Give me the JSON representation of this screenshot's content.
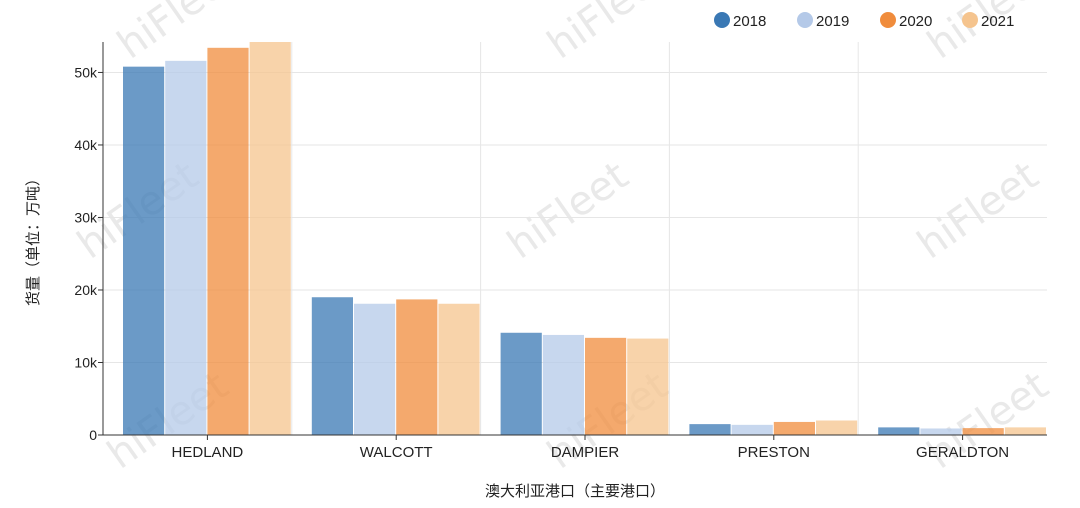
{
  "chart_data": {
    "type": "bar",
    "categories": [
      "HEDLAND",
      "WALCOTT",
      "DAMPIER",
      "PRESTON",
      "GERALDTON"
    ],
    "series": [
      {
        "name": "2018",
        "color": "#3a78b4",
        "values": [
          50800,
          19000,
          14100,
          1500,
          1050
        ]
      },
      {
        "name": "2019",
        "color": "#b4c9e8",
        "values": [
          51600,
          18100,
          13800,
          1400,
          900
        ]
      },
      {
        "name": "2020",
        "color": "#f08c3c",
        "values": [
          53400,
          18700,
          13400,
          1800,
          950
        ]
      },
      {
        "name": "2021",
        "color": "#f5c48e",
        "values": [
          54200,
          18100,
          13300,
          2000,
          1050
        ]
      }
    ],
    "xlabel": "澳大利亚港口（主要港口）",
    "ylabel": "货量（单位：万吨）",
    "ylim": [
      0,
      54200
    ],
    "yticks": [
      0,
      10000,
      20000,
      30000,
      40000,
      50000
    ],
    "ytick_labels": [
      "0",
      "10k",
      "20k",
      "30k",
      "40k",
      "50k"
    ],
    "legend_position": "top-right",
    "grid": true
  },
  "watermark": "hiFleet"
}
